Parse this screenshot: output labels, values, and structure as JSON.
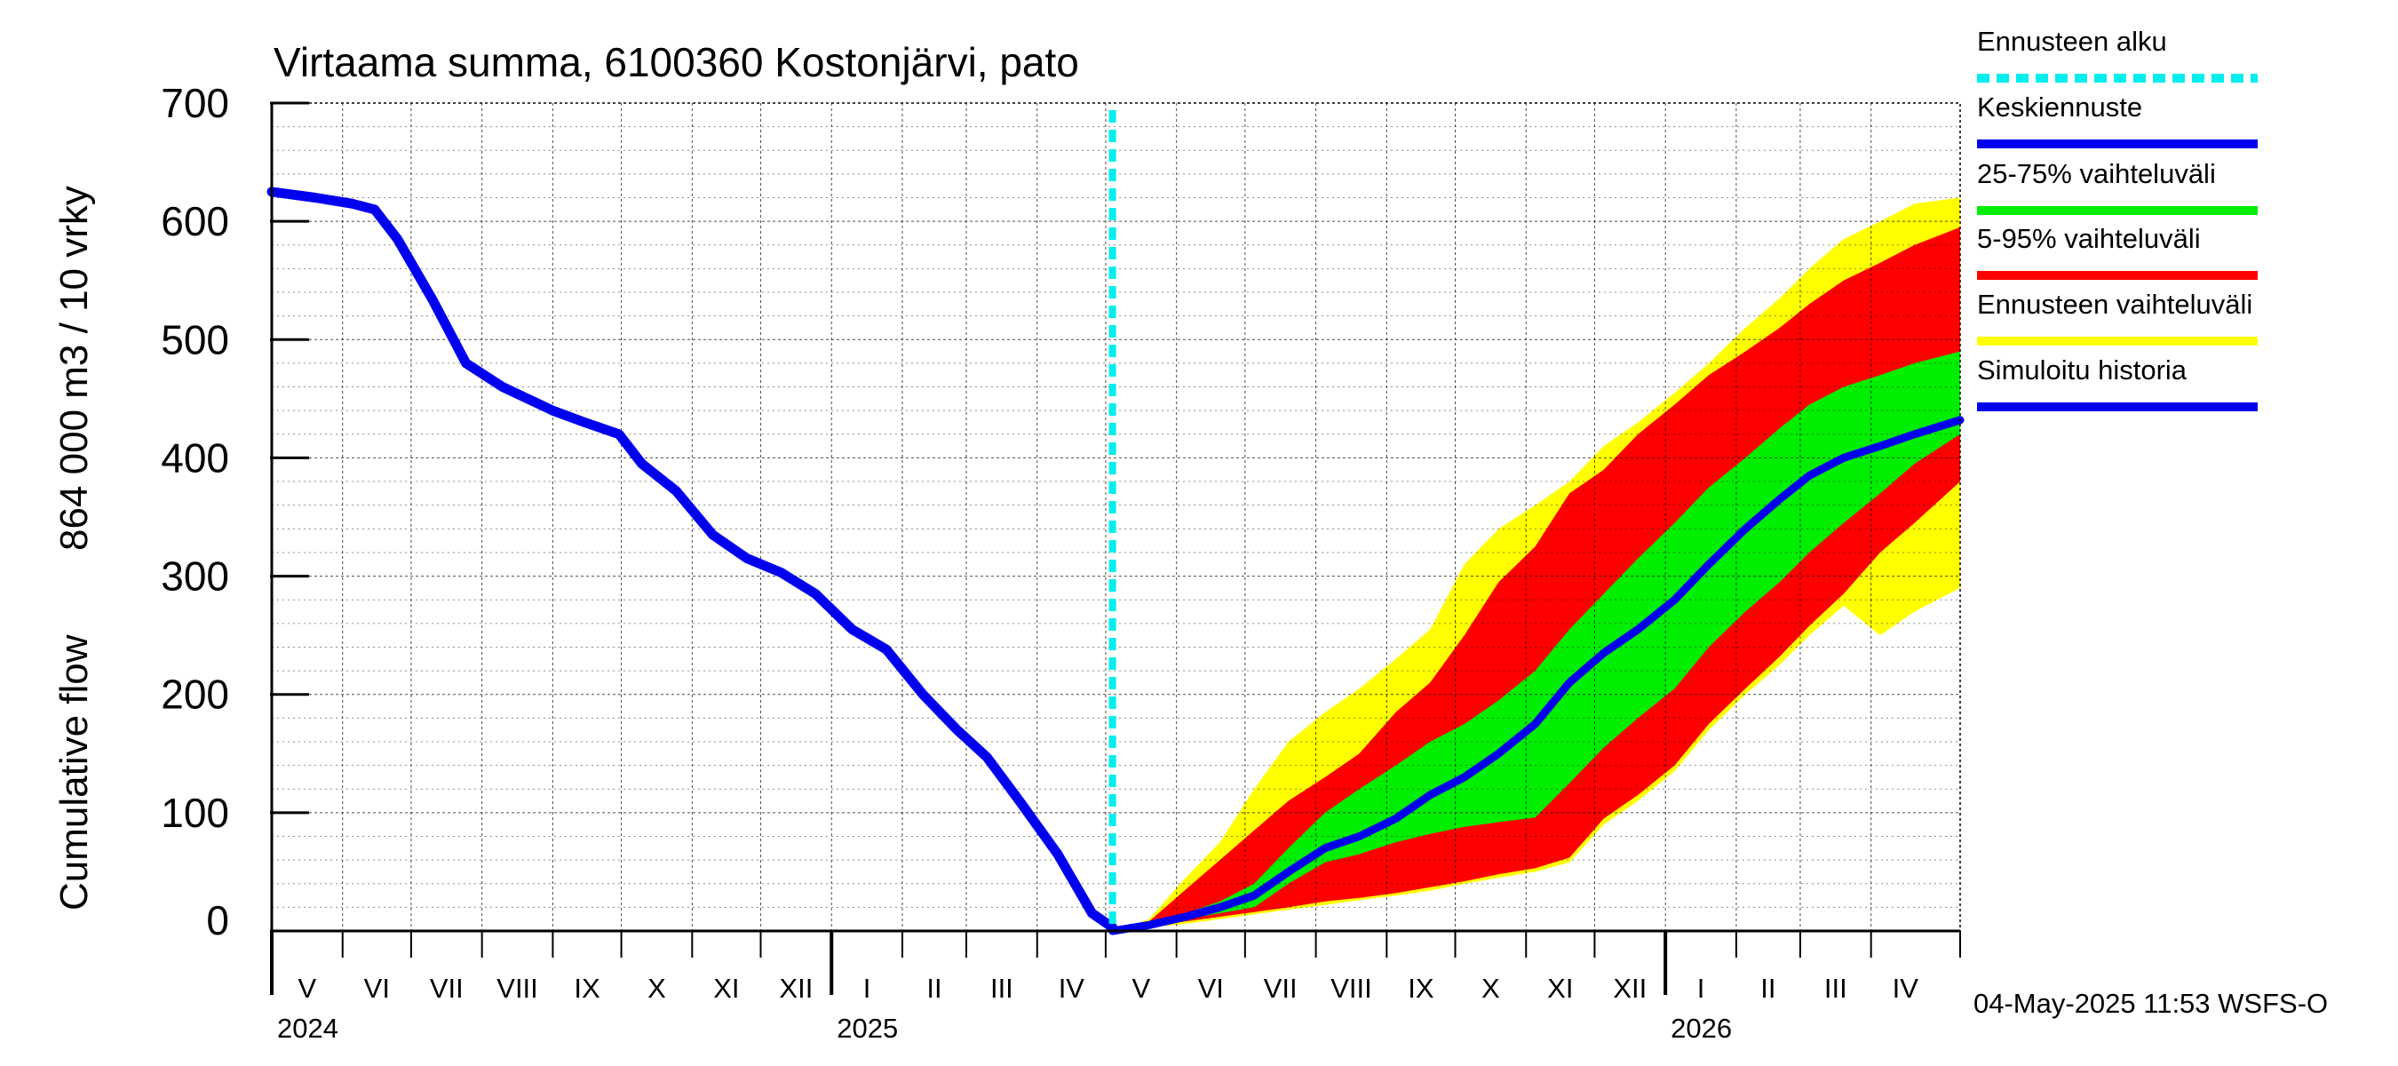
{
  "chart_data": {
    "type": "area",
    "title": "Virtaama summa, 6100360 Kostonjärvi, pato",
    "ylabel_line1": "Cumulative flow",
    "ylabel_line2": "864 000 m3 / 10 vrky",
    "ylim": [
      0,
      700
    ],
    "yticks": [
      0,
      100,
      200,
      300,
      400,
      500,
      600,
      700
    ],
    "xlim": [
      "2024-05-01",
      "2026-05-10"
    ],
    "grid": true,
    "forecast_start": "2025-05-04",
    "months": [
      {
        "label": "V",
        "start": "2024-05-01",
        "end": "2024-06-01"
      },
      {
        "label": "VI",
        "start": "2024-06-01",
        "end": "2024-07-01"
      },
      {
        "label": "VII",
        "start": "2024-07-01",
        "end": "2024-08-01"
      },
      {
        "label": "VIII",
        "start": "2024-08-01",
        "end": "2024-09-01"
      },
      {
        "label": "IX",
        "start": "2024-09-01",
        "end": "2024-10-01"
      },
      {
        "label": "X",
        "start": "2024-10-01",
        "end": "2024-11-01"
      },
      {
        "label": "XI",
        "start": "2024-11-01",
        "end": "2024-12-01"
      },
      {
        "label": "XII",
        "start": "2024-12-01",
        "end": "2025-01-01"
      },
      {
        "label": "I",
        "start": "2025-01-01",
        "end": "2025-02-01"
      },
      {
        "label": "II",
        "start": "2025-02-01",
        "end": "2025-03-01"
      },
      {
        "label": "III",
        "start": "2025-03-01",
        "end": "2025-04-01"
      },
      {
        "label": "IV",
        "start": "2025-04-01",
        "end": "2025-05-01"
      },
      {
        "label": "V",
        "start": "2025-05-01",
        "end": "2025-06-01"
      },
      {
        "label": "VI",
        "start": "2025-06-01",
        "end": "2025-07-01"
      },
      {
        "label": "VII",
        "start": "2025-07-01",
        "end": "2025-08-01"
      },
      {
        "label": "VIII",
        "start": "2025-08-01",
        "end": "2025-09-01"
      },
      {
        "label": "IX",
        "start": "2025-09-01",
        "end": "2025-10-01"
      },
      {
        "label": "X",
        "start": "2025-10-01",
        "end": "2025-11-01"
      },
      {
        "label": "XI",
        "start": "2025-11-01",
        "end": "2025-12-01"
      },
      {
        "label": "XII",
        "start": "2025-12-01",
        "end": "2026-01-01"
      },
      {
        "label": "I",
        "start": "2026-01-01",
        "end": "2026-02-01"
      },
      {
        "label": "II",
        "start": "2026-02-01",
        "end": "2026-03-01"
      },
      {
        "label": "III",
        "start": "2026-03-01",
        "end": "2026-04-01"
      },
      {
        "label": "IV",
        "start": "2026-04-01",
        "end": "2026-05-01"
      }
    ],
    "years": [
      {
        "label": "2024",
        "date": "2024-05-01"
      },
      {
        "label": "2025",
        "date": "2025-01-01"
      },
      {
        "label": "2026",
        "date": "2026-01-01"
      }
    ],
    "history": {
      "name": "Simuloitu historia",
      "color": "#0000ee",
      "points": [
        [
          "2024-05-01",
          625
        ],
        [
          "2024-05-20",
          620
        ],
        [
          "2024-06-05",
          615
        ],
        [
          "2024-06-15",
          610
        ],
        [
          "2024-06-25",
          585
        ],
        [
          "2024-07-10",
          535
        ],
        [
          "2024-07-25",
          480
        ],
        [
          "2024-08-10",
          460
        ],
        [
          "2024-09-01",
          440
        ],
        [
          "2024-09-15",
          430
        ],
        [
          "2024-09-30",
          420
        ],
        [
          "2024-10-10",
          395
        ],
        [
          "2024-10-25",
          372
        ],
        [
          "2024-11-10",
          335
        ],
        [
          "2024-11-25",
          315
        ],
        [
          "2024-12-10",
          303
        ],
        [
          "2024-12-25",
          285
        ],
        [
          "2025-01-10",
          255
        ],
        [
          "2025-01-25",
          238
        ],
        [
          "2025-02-10",
          200
        ],
        [
          "2025-02-25",
          170
        ],
        [
          "2025-03-10",
          147
        ],
        [
          "2025-03-25",
          108
        ],
        [
          "2025-04-10",
          65
        ],
        [
          "2025-04-25",
          15
        ],
        [
          "2025-05-04",
          3
        ]
      ]
    },
    "forecast": {
      "x": [
        "2025-05-04",
        "2025-05-20",
        "2025-06-05",
        "2025-06-20",
        "2025-07-05",
        "2025-07-20",
        "2025-08-05",
        "2025-08-20",
        "2025-09-05",
        "2025-09-20",
        "2025-10-05",
        "2025-10-20",
        "2025-11-05",
        "2025-11-20",
        "2025-12-05",
        "2025-12-20",
        "2026-01-05",
        "2026-01-20",
        "2026-02-05",
        "2026-02-20",
        "2026-03-05",
        "2026-03-20",
        "2026-04-05",
        "2026-04-20",
        "2026-05-10"
      ],
      "series": [
        {
          "name": "Ennusteen vaihteluväli",
          "color": "#ffff00",
          "low": [
            0,
            3,
            6,
            10,
            14,
            18,
            22,
            26,
            30,
            34,
            40,
            45,
            50,
            58,
            90,
            110,
            135,
            170,
            200,
            225,
            250,
            275,
            250,
            270,
            290
          ],
          "high": [
            0,
            10,
            45,
            75,
            120,
            160,
            185,
            205,
            230,
            255,
            310,
            340,
            360,
            380,
            410,
            430,
            455,
            480,
            510,
            535,
            560,
            585,
            600,
            615,
            620
          ]
        },
        {
          "name": "5-95% vaihteluväli",
          "color": "#ff0000",
          "low": [
            0,
            4,
            8,
            12,
            16,
            20,
            25,
            28,
            32,
            37,
            42,
            48,
            53,
            62,
            95,
            115,
            140,
            175,
            205,
            232,
            258,
            285,
            320,
            345,
            380
          ],
          "high": [
            0,
            8,
            35,
            60,
            85,
            110,
            130,
            150,
            185,
            210,
            250,
            295,
            325,
            370,
            390,
            420,
            445,
            470,
            490,
            510,
            530,
            550,
            565,
            580,
            595
          ]
        },
        {
          "name": "25-75% vaihteluväli",
          "color": "#00ee00",
          "low": [
            0,
            5,
            10,
            15,
            20,
            40,
            58,
            65,
            75,
            82,
            88,
            92,
            96,
            125,
            155,
            180,
            205,
            240,
            270,
            295,
            320,
            345,
            370,
            395,
            420
          ],
          "high": [
            0,
            6,
            15,
            25,
            40,
            70,
            100,
            120,
            140,
            160,
            175,
            195,
            220,
            255,
            285,
            315,
            345,
            375,
            400,
            425,
            445,
            460,
            470,
            480,
            490
          ]
        }
      ],
      "median": {
        "name": "Keskiennuste",
        "color": "#0000ee",
        "values": [
          0,
          5,
          12,
          20,
          30,
          50,
          70,
          80,
          95,
          115,
          130,
          150,
          175,
          210,
          235,
          255,
          280,
          310,
          340,
          365,
          385,
          400,
          410,
          420,
          432
        ]
      }
    },
    "legend_position": "right",
    "legend": [
      {
        "label": "Ennusteen alku",
        "color": "#00eeee",
        "style": "dashed"
      },
      {
        "label": "Keskiennuste",
        "color": "#0000ee",
        "style": "solid"
      },
      {
        "label": "25-75% vaihteluväli",
        "color": "#00ee00",
        "style": "solid"
      },
      {
        "label": "5-95% vaihteluväli",
        "color": "#ff0000",
        "style": "solid"
      },
      {
        "label": "Ennusteen vaihteluväli",
        "color": "#ffff00",
        "style": "solid"
      },
      {
        "label": "Simuloitu historia",
        "color": "#0000ee",
        "style": "solid"
      }
    ],
    "timestamp": "04-May-2025 11:53 WSFS-O"
  }
}
